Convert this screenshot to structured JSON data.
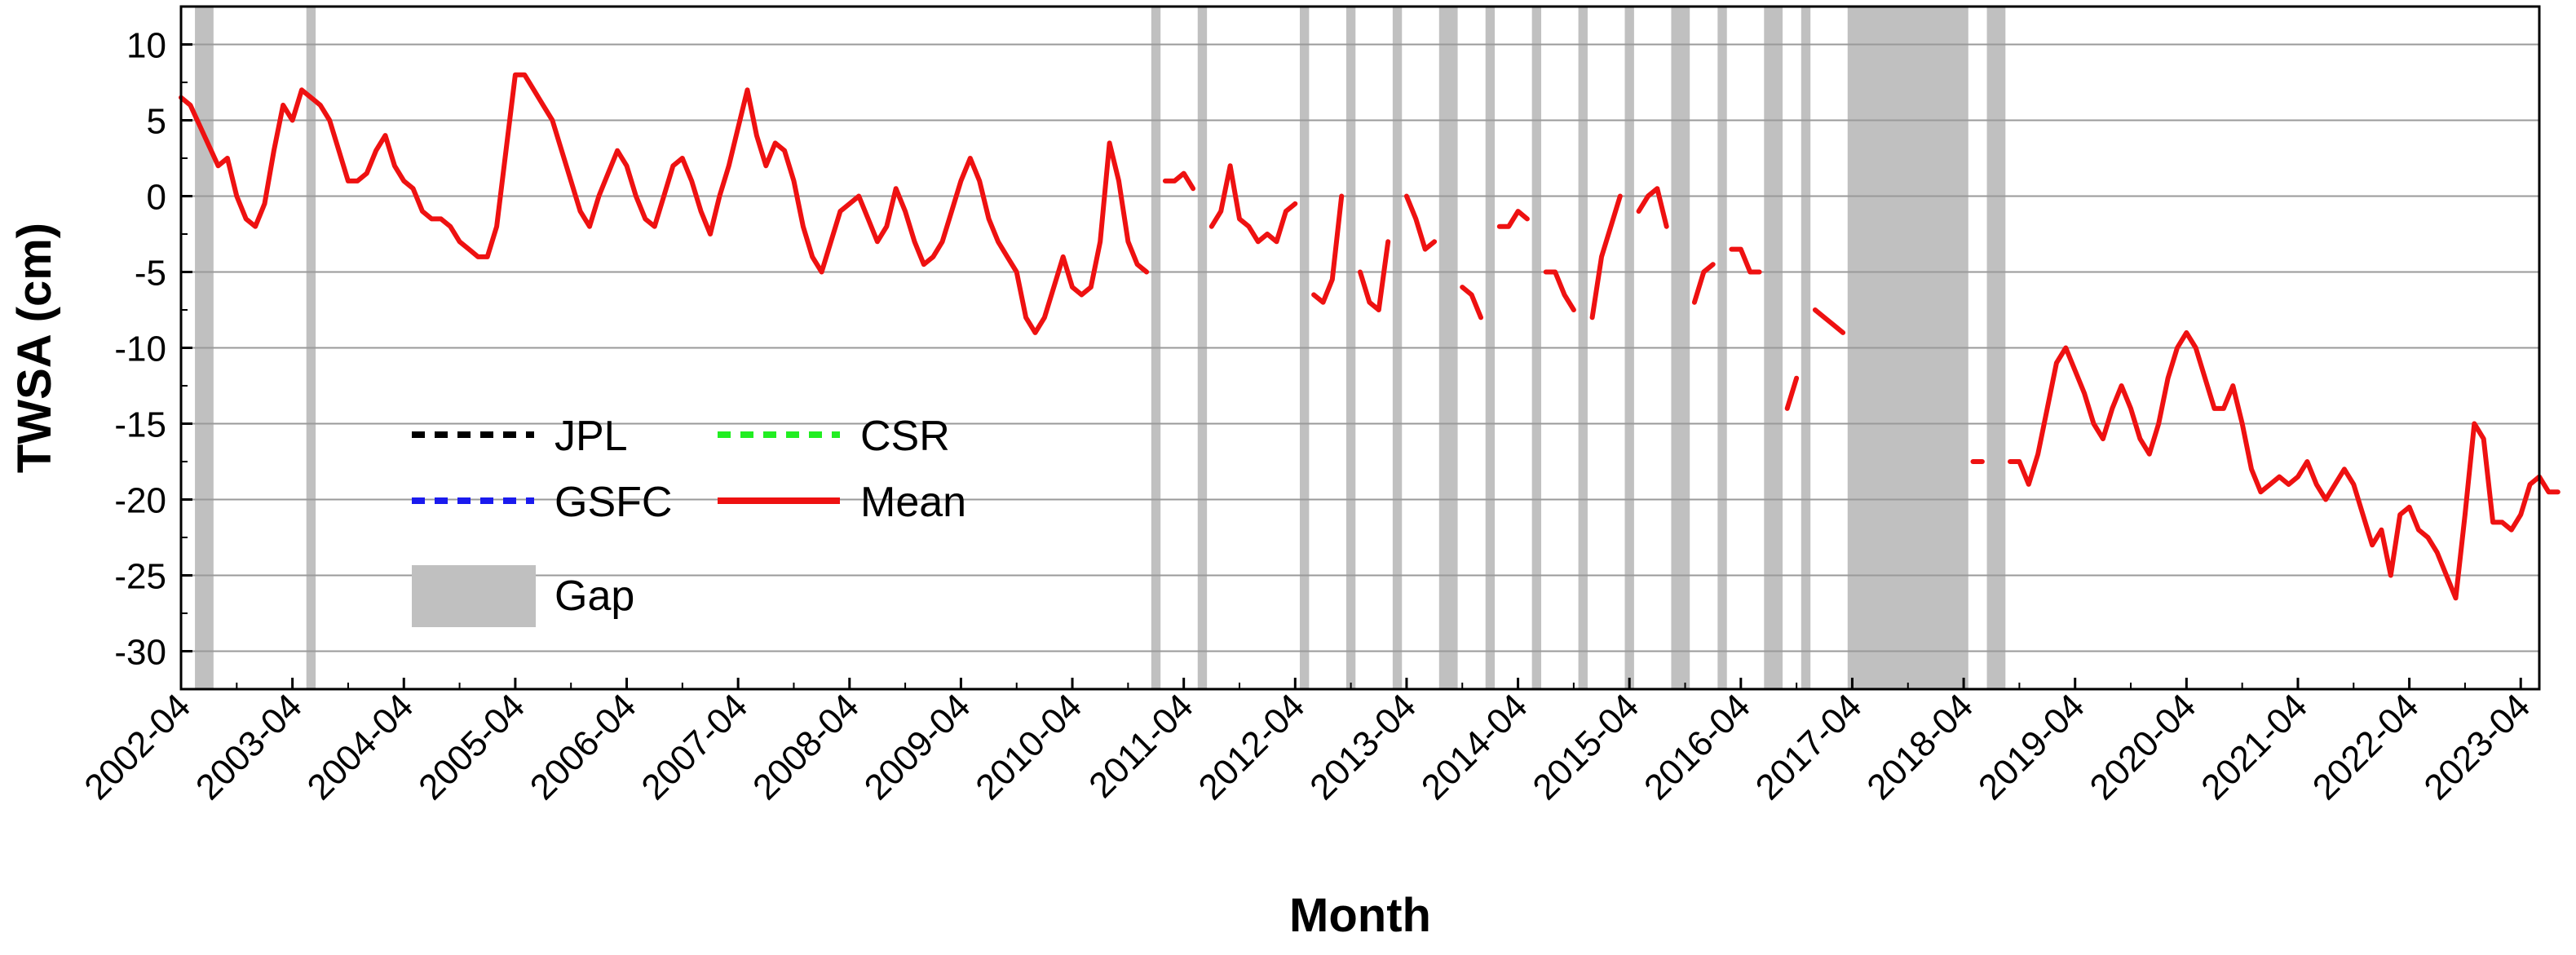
{
  "chart_data": {
    "type": "line",
    "title": "",
    "xlabel": "Month",
    "ylabel": "TWSA (cm)",
    "ylim": [
      -32.5,
      12.5
    ],
    "yticks": [
      10,
      5,
      0,
      -5,
      -10,
      -15,
      -20,
      -25,
      -30
    ],
    "xlim": [
      "2002-04",
      "2023-06"
    ],
    "xticks": [
      "2002-04",
      "2003-04",
      "2004-04",
      "2005-04",
      "2006-04",
      "2007-04",
      "2008-04",
      "2009-04",
      "2010-04",
      "2011-04",
      "2012-04",
      "2013-04",
      "2014-04",
      "2015-04",
      "2016-04",
      "2017-04",
      "2018-04",
      "2019-04",
      "2020-04",
      "2021-04",
      "2022-04",
      "2023-04"
    ],
    "grid": "horizontal",
    "legend_position": "lower-left",
    "colors": {
      "JPL": "#000000",
      "CSR": "#22ee22",
      "GSFC": "#1a1aee",
      "Mean": "#ee1111",
      "Gap": "#c0c0c0"
    },
    "legend": [
      {
        "label": "JPL",
        "style": "dashed",
        "color": "#000000"
      },
      {
        "label": "CSR",
        "style": "dashed",
        "color": "#22ee22"
      },
      {
        "label": "GSFC",
        "style": "dashed",
        "color": "#1a1aee"
      },
      {
        "label": "Mean",
        "style": "solid",
        "color": "#ee1111"
      },
      {
        "label": "Gap",
        "style": "box",
        "color": "#c0c0c0"
      }
    ],
    "gaps": [
      [
        "2002-06",
        "2002-07"
      ],
      [
        "2003-06",
        "2003-06"
      ],
      [
        "2011-01",
        "2011-01"
      ],
      [
        "2011-06",
        "2011-06"
      ],
      [
        "2012-05",
        "2012-05"
      ],
      [
        "2012-10",
        "2012-10"
      ],
      [
        "2013-03",
        "2013-03"
      ],
      [
        "2013-08",
        "2013-09"
      ],
      [
        "2014-01",
        "2014-01"
      ],
      [
        "2014-06",
        "2014-06"
      ],
      [
        "2014-11",
        "2014-11"
      ],
      [
        "2015-04",
        "2015-04"
      ],
      [
        "2015-09",
        "2015-10"
      ],
      [
        "2016-02",
        "2016-02"
      ],
      [
        "2016-07",
        "2016-08"
      ],
      [
        "2016-11",
        "2016-11"
      ],
      [
        "2017-04",
        "2018-04"
      ],
      [
        "2018-07",
        "2018-08"
      ]
    ],
    "series": [
      {
        "name": "Mean",
        "points": [
          [
            "2002-04",
            6.5
          ],
          [
            "2002-05",
            6
          ],
          [
            "2002-08",
            2
          ],
          [
            "2002-09",
            2.5
          ],
          [
            "2002-10",
            0
          ],
          [
            "2002-11",
            -1.5
          ],
          [
            "2002-12",
            -2
          ],
          [
            "2003-01",
            -0.5
          ],
          [
            "2003-02",
            3
          ],
          [
            "2003-03",
            6
          ],
          [
            "2003-04",
            5
          ],
          [
            "2003-05",
            7
          ],
          [
            "2003-07",
            6
          ],
          [
            "2003-08",
            5
          ],
          [
            "2003-09",
            3
          ],
          [
            "2003-10",
            1
          ],
          [
            "2003-11",
            1
          ],
          [
            "2003-12",
            1.5
          ],
          [
            "2004-01",
            3
          ],
          [
            "2004-02",
            4
          ],
          [
            "2004-03",
            2
          ],
          [
            "2004-04",
            1
          ],
          [
            "2004-05",
            0.5
          ],
          [
            "2004-06",
            -1
          ],
          [
            "2004-07",
            -1.5
          ],
          [
            "2004-08",
            -1.5
          ],
          [
            "2004-09",
            -2
          ],
          [
            "2004-10",
            -3
          ],
          [
            "2004-11",
            -3.5
          ],
          [
            "2004-12",
            -4
          ],
          [
            "2005-01",
            -4
          ],
          [
            "2005-02",
            -2
          ],
          [
            "2005-03",
            3
          ],
          [
            "2005-04",
            8
          ],
          [
            "2005-05",
            8
          ],
          [
            "2005-06",
            7
          ],
          [
            "2005-07",
            6
          ],
          [
            "2005-08",
            5
          ],
          [
            "2005-09",
            3
          ],
          [
            "2005-10",
            1
          ],
          [
            "2005-11",
            -1
          ],
          [
            "2005-12",
            -2
          ],
          [
            "2006-01",
            0
          ],
          [
            "2006-02",
            1.5
          ],
          [
            "2006-03",
            3
          ],
          [
            "2006-04",
            2
          ],
          [
            "2006-05",
            0
          ],
          [
            "2006-06",
            -1.5
          ],
          [
            "2006-07",
            -2
          ],
          [
            "2006-08",
            0
          ],
          [
            "2006-09",
            2
          ],
          [
            "2006-10",
            2.5
          ],
          [
            "2006-11",
            1
          ],
          [
            "2006-12",
            -1
          ],
          [
            "2007-01",
            -2.5
          ],
          [
            "2007-02",
            0
          ],
          [
            "2007-03",
            2
          ],
          [
            "2007-04",
            4.5
          ],
          [
            "2007-05",
            7
          ],
          [
            "2007-06",
            4
          ],
          [
            "2007-07",
            2
          ],
          [
            "2007-08",
            3.5
          ],
          [
            "2007-09",
            3
          ],
          [
            "2007-10",
            1
          ],
          [
            "2007-11",
            -2
          ],
          [
            "2007-12",
            -4
          ],
          [
            "2008-01",
            -5
          ],
          [
            "2008-02",
            -3
          ],
          [
            "2008-03",
            -1
          ],
          [
            "2008-04",
            -0.5
          ],
          [
            "2008-05",
            0
          ],
          [
            "2008-06",
            -1.5
          ],
          [
            "2008-07",
            -3
          ],
          [
            "2008-08",
            -2
          ],
          [
            "2008-09",
            0.5
          ],
          [
            "2008-10",
            -1
          ],
          [
            "2008-11",
            -3
          ],
          [
            "2008-12",
            -4.5
          ],
          [
            "2009-01",
            -4
          ],
          [
            "2009-02",
            -3
          ],
          [
            "2009-03",
            -1
          ],
          [
            "2009-04",
            1
          ],
          [
            "2009-05",
            2.5
          ],
          [
            "2009-06",
            1
          ],
          [
            "2009-07",
            -1.5
          ],
          [
            "2009-08",
            -3
          ],
          [
            "2009-09",
            -4
          ],
          [
            "2009-10",
            -5
          ],
          [
            "2009-11",
            -8
          ],
          [
            "2009-12",
            -9
          ],
          [
            "2010-01",
            -8
          ],
          [
            "2010-02",
            -6
          ],
          [
            "2010-03",
            -4
          ],
          [
            "2010-04",
            -6
          ],
          [
            "2010-05",
            -6.5
          ],
          [
            "2010-06",
            -6
          ],
          [
            "2010-07",
            -3
          ],
          [
            "2010-08",
            3.5
          ],
          [
            "2010-09",
            1
          ],
          [
            "2010-10",
            -3
          ],
          [
            "2010-11",
            -4.5
          ],
          [
            "2010-12",
            -5
          ]
        ]
      },
      {
        "name": "Mean",
        "points": [
          [
            "2011-02",
            1
          ],
          [
            "2011-03",
            1
          ],
          [
            "2011-04",
            1.5
          ],
          [
            "2011-05",
            0.5
          ]
        ]
      },
      {
        "name": "Mean",
        "points": [
          [
            "2011-07",
            -2
          ],
          [
            "2011-08",
            -1
          ],
          [
            "2011-09",
            2
          ],
          [
            "2011-10",
            -1.5
          ],
          [
            "2011-11",
            -2
          ],
          [
            "2011-12",
            -3
          ],
          [
            "2012-01",
            -2.5
          ],
          [
            "2012-02",
            -3
          ],
          [
            "2012-03",
            -1
          ],
          [
            "2012-04",
            -0.5
          ]
        ]
      },
      {
        "name": "Mean",
        "points": [
          [
            "2012-06",
            -6.5
          ],
          [
            "2012-07",
            -7
          ],
          [
            "2012-08",
            -5.5
          ],
          [
            "2012-09",
            0
          ]
        ]
      },
      {
        "name": "Mean",
        "points": [
          [
            "2012-11",
            -5
          ],
          [
            "2012-12",
            -7
          ],
          [
            "2013-01",
            -7.5
          ],
          [
            "2013-02",
            -3
          ]
        ]
      },
      {
        "name": "Mean",
        "points": [
          [
            "2013-04",
            0
          ],
          [
            "2013-05",
            -1.5
          ],
          [
            "2013-06",
            -3.5
          ],
          [
            "2013-07",
            -3
          ]
        ]
      },
      {
        "name": "Mean",
        "points": [
          [
            "2013-10",
            -6
          ],
          [
            "2013-11",
            -6.5
          ],
          [
            "2013-12",
            -8
          ]
        ]
      },
      {
        "name": "Mean",
        "points": [
          [
            "2014-02",
            -2
          ],
          [
            "2014-03",
            -2
          ],
          [
            "2014-04",
            -1
          ],
          [
            "2014-05",
            -1.5
          ]
        ]
      },
      {
        "name": "Mean",
        "points": [
          [
            "2014-07",
            -5
          ],
          [
            "2014-08",
            -5
          ],
          [
            "2014-09",
            -6.5
          ],
          [
            "2014-10",
            -7.5
          ]
        ]
      },
      {
        "name": "Mean",
        "points": [
          [
            "2014-12",
            -8
          ],
          [
            "2015-01",
            -4
          ],
          [
            "2015-02",
            -2
          ],
          [
            "2015-03",
            0
          ]
        ]
      },
      {
        "name": "Mean",
        "points": [
          [
            "2015-05",
            -1
          ],
          [
            "2015-06",
            0
          ],
          [
            "2015-07",
            0.5
          ],
          [
            "2015-08",
            -2
          ]
        ]
      },
      {
        "name": "Mean",
        "points": [
          [
            "2015-11",
            -7
          ],
          [
            "2015-12",
            -5
          ],
          [
            "2016-01",
            -4.5
          ]
        ]
      },
      {
        "name": "Mean",
        "points": [
          [
            "2016-03",
            -3.5
          ],
          [
            "2016-04",
            -3.5
          ],
          [
            "2016-05",
            -5
          ],
          [
            "2016-06",
            -5
          ]
        ]
      },
      {
        "name": "Mean",
        "points": [
          [
            "2016-09",
            -14
          ],
          [
            "2016-10",
            -12
          ]
        ]
      },
      {
        "name": "Mean",
        "points": [
          [
            "2016-12",
            -7.5
          ],
          [
            "2017-01",
            -8
          ],
          [
            "2017-02",
            -8.5
          ],
          [
            "2017-03",
            -9
          ]
        ]
      },
      {
        "name": "Mean",
        "points": [
          [
            "2018-05",
            -17.5
          ],
          [
            "2018-06",
            -17.5
          ]
        ]
      },
      {
        "name": "Mean",
        "points": [
          [
            "2018-09",
            -17.5
          ],
          [
            "2018-10",
            -17.5
          ],
          [
            "2018-11",
            -19
          ],
          [
            "2018-12",
            -17
          ],
          [
            "2019-01",
            -14
          ],
          [
            "2019-02",
            -11
          ],
          [
            "2019-03",
            -10
          ],
          [
            "2019-04",
            -11.5
          ],
          [
            "2019-05",
            -13
          ],
          [
            "2019-06",
            -15
          ],
          [
            "2019-07",
            -16
          ],
          [
            "2019-08",
            -14
          ],
          [
            "2019-09",
            -12.5
          ],
          [
            "2019-10",
            -14
          ],
          [
            "2019-11",
            -16
          ],
          [
            "2019-12",
            -17
          ],
          [
            "2020-01",
            -15
          ],
          [
            "2020-02",
            -12
          ],
          [
            "2020-03",
            -10
          ],
          [
            "2020-04",
            -9
          ],
          [
            "2020-05",
            -10
          ],
          [
            "2020-06",
            -12
          ],
          [
            "2020-07",
            -14
          ],
          [
            "2020-08",
            -14
          ],
          [
            "2020-09",
            -12.5
          ],
          [
            "2020-10",
            -15
          ],
          [
            "2020-11",
            -18
          ],
          [
            "2020-12",
            -19.5
          ],
          [
            "2021-01",
            -19
          ],
          [
            "2021-02",
            -18.5
          ],
          [
            "2021-03",
            -19
          ],
          [
            "2021-04",
            -18.5
          ],
          [
            "2021-05",
            -17.5
          ],
          [
            "2021-06",
            -19
          ],
          [
            "2021-07",
            -20
          ],
          [
            "2021-08",
            -19
          ],
          [
            "2021-09",
            -18
          ],
          [
            "2021-10",
            -19
          ],
          [
            "2021-11",
            -21
          ],
          [
            "2021-12",
            -23
          ],
          [
            "2022-01",
            -22
          ],
          [
            "2022-02",
            -25
          ],
          [
            "2022-03",
            -21
          ],
          [
            "2022-04",
            -20.5
          ],
          [
            "2022-05",
            -22
          ],
          [
            "2022-06",
            -22.5
          ],
          [
            "2022-07",
            -23.5
          ],
          [
            "2022-08",
            -25
          ],
          [
            "2022-09",
            -26.5
          ],
          [
            "2022-10",
            -21
          ],
          [
            "2022-11",
            -15
          ],
          [
            "2022-12",
            -16
          ],
          [
            "2023-01",
            -21.5
          ],
          [
            "2023-02",
            -21.5
          ],
          [
            "2023-03",
            -22
          ],
          [
            "2023-04",
            -21
          ],
          [
            "2023-05",
            -19
          ],
          [
            "2023-06",
            -18.5
          ],
          [
            "2023-07",
            -19.5
          ],
          [
            "2023-08",
            -19.5
          ]
        ]
      }
    ]
  }
}
